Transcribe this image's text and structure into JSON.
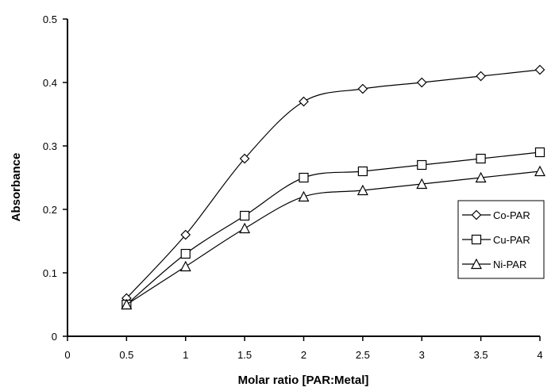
{
  "chart_data": {
    "type": "line",
    "title": "",
    "xlabel": "Molar ratio [PAR:Metal]",
    "ylabel": "Absorbance",
    "xlim": [
      0,
      4
    ],
    "ylim": [
      0,
      0.5
    ],
    "x_ticks": [
      "0",
      "0.5",
      "1",
      "1.5",
      "2",
      "2.5",
      "3",
      "3.5",
      "4"
    ],
    "y_ticks": [
      "0",
      "0.1",
      "0.2",
      "0.3",
      "0.4",
      "0.5"
    ],
    "grid": false,
    "legend_position": "right",
    "x": [
      0.5,
      1,
      1.5,
      2,
      2.5,
      3,
      3.5,
      4
    ],
    "series": [
      {
        "name": "Co-PAR",
        "marker": "diamond",
        "values": [
          0.06,
          0.16,
          0.28,
          0.37,
          0.39,
          0.4,
          0.41,
          0.42
        ]
      },
      {
        "name": "Cu-PAR",
        "marker": "square",
        "values": [
          0.05,
          0.13,
          0.19,
          0.25,
          0.26,
          0.27,
          0.28,
          0.29
        ]
      },
      {
        "name": "Ni-PAR",
        "marker": "triangle",
        "values": [
          0.05,
          0.11,
          0.17,
          0.22,
          0.23,
          0.24,
          0.25,
          0.26
        ]
      }
    ]
  }
}
